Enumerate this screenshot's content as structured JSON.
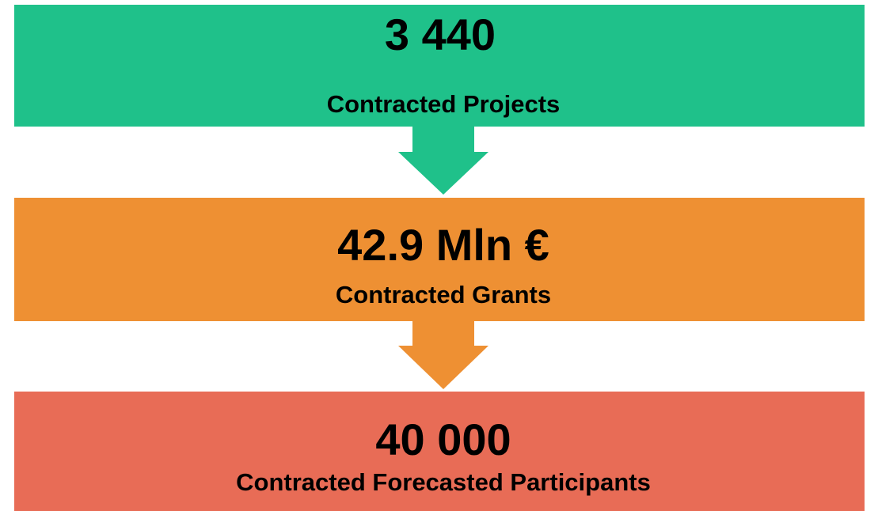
{
  "boxes": [
    {
      "value": "3 440",
      "label": "Contracted Projects"
    },
    {
      "value": "42.9 Mln €",
      "label": "Contracted Grants"
    },
    {
      "value": "40 000",
      "label": "Contracted Forecasted Participants"
    }
  ]
}
